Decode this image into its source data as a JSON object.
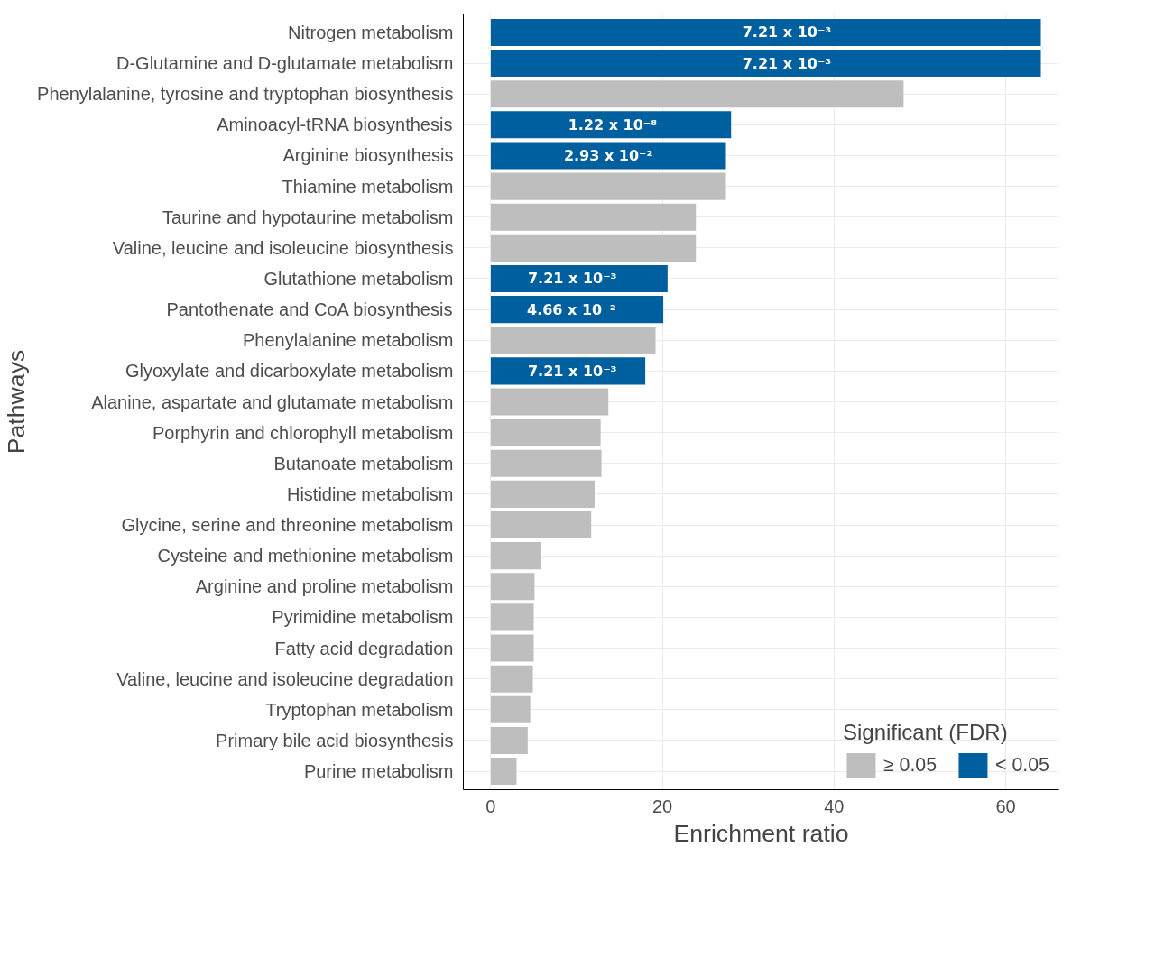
{
  "chart_data": {
    "type": "bar",
    "orientation": "horizontal",
    "annotations": [
      {
        "text": "7.21 x 10⁻³",
        "x": 34.5,
        "y": "Nitrogen metabolism"
      },
      {
        "text": "7.21 x 10⁻³",
        "x": 34.5,
        "y": "D-Glutamine and D-glutamate metabolism"
      },
      {
        "text": "1.22 x 10⁻⁸",
        "x": 14.2,
        "y": "Aminoacyl-tRNA biosynthesis"
      },
      {
        "text": "2.93 x 10⁻²",
        "x": 13.7,
        "y": "Arginine biosynthesis"
      },
      {
        "text": "7.21 x 10⁻³",
        "x": 9.5,
        "y": "Glutathione metabolism"
      },
      {
        "text": "4.66 x 10⁻²",
        "x": 9.4,
        "y": "Pantothenate and CoA biosynthesis"
      },
      {
        "text": "7.21 x 10⁻³",
        "x": 9.5,
        "y": "Glyoxylate and dicarboxylate metabolism"
      }
    ],
    "xlabel": "Enrichment ratio",
    "ylabel": "Pathways",
    "legend_title": "Significant (FDR)",
    "legend": "bottom",
    "grid": true,
    "categories": [
      "Nitrogen metabolism",
      "D-Glutamine and D-glutamate metabolism",
      "Phenylalanine, tyrosine and tryptophan biosynthesis",
      "Aminoacyl-tRNA biosynthesis",
      "Arginine biosynthesis",
      "Thiamine metabolism",
      "Taurine and hypotaurine metabolism",
      "Valine, leucine and isoleucine biosynthesis",
      "Glutathione metabolism",
      "Pantothenate and CoA biosynthesis",
      "Phenylalanine metabolism",
      "Glyoxylate and dicarboxylate metabolism",
      "Alanine, aspartate and glutamate metabolism",
      "Porphyrin and chlorophyll metabolism",
      "Butanoate metabolism",
      "Histidine metabolism",
      "Glycine, serine and threonine metabolism",
      "Cysteine and methionine metabolism",
      "Arginine and proline metabolism",
      "Pyrimidine metabolism",
      "Fatty acid degradation",
      "Valine, leucine and isoleucine degradation",
      "Tryptophan metabolism",
      "Primary bile acid biosynthesis",
      "Purine metabolism"
    ],
    "xlim": [
      -3.2,
      66.2
    ],
    "xticks": [
      0,
      20,
      40,
      60
    ],
    "series": [
      {
        "name": "≥ 0.05",
        "color": "#bebebe",
        "values": [
          null,
          null,
          48.1,
          null,
          null,
          27.4,
          23.9,
          23.9,
          null,
          null,
          19.2,
          null,
          13.7,
          12.8,
          12.9,
          12.1,
          11.7,
          5.8,
          5.1,
          5.0,
          5.0,
          4.9,
          4.6,
          4.3,
          3.0
        ]
      },
      {
        "name": "< 0.05",
        "color": "#005f9e",
        "values": [
          64.1,
          64.1,
          null,
          28.0,
          27.4,
          null,
          null,
          null,
          20.6,
          20.1,
          null,
          18.0,
          null,
          null,
          null,
          null,
          null,
          null,
          null,
          null,
          null,
          null,
          null,
          null,
          null
        ]
      }
    ]
  }
}
